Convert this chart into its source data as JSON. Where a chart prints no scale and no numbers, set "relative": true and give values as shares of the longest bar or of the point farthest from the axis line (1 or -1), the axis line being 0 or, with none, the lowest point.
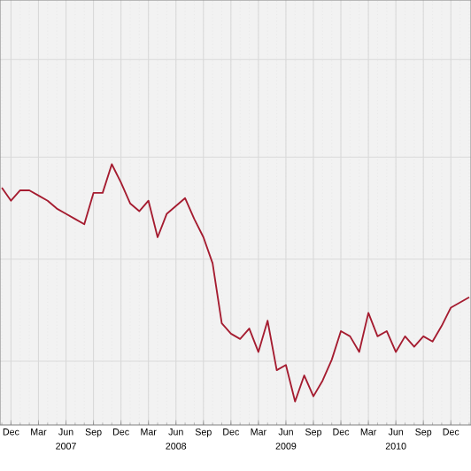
{
  "chart_data": {
    "type": "line",
    "relative": true,
    "grid": true,
    "color": "#a51c30",
    "categories": [
      null,
      "Dec",
      null,
      null,
      "Mar",
      null,
      null,
      "Jun",
      null,
      null,
      "Sep",
      null,
      null,
      "Dec",
      null,
      null,
      "Mar",
      null,
      null,
      "Jun",
      null,
      null,
      "Sep",
      null,
      null,
      "Dec",
      null,
      null,
      "Mar",
      null,
      null,
      "Jun",
      null,
      null,
      "Sep",
      null,
      null,
      "Dec",
      null,
      null,
      "Mar",
      null,
      null,
      "Jun",
      null,
      null,
      "Sep",
      null,
      null,
      "Dec",
      null,
      null
    ],
    "values": [
      0.91,
      0.86,
      0.9,
      0.9,
      0.88,
      0.86,
      0.83,
      0.81,
      0.79,
      0.77,
      0.89,
      0.89,
      1.0,
      0.93,
      0.85,
      0.82,
      0.86,
      0.72,
      0.81,
      0.84,
      0.87,
      0.79,
      0.72,
      0.62,
      0.39,
      0.35,
      0.33,
      0.37,
      0.28,
      0.4,
      0.21,
      0.23,
      0.09,
      0.19,
      0.11,
      0.17,
      0.25,
      0.36,
      0.34,
      0.28,
      0.43,
      0.34,
      0.36,
      0.28,
      0.34,
      0.3,
      0.34,
      0.32,
      0.38,
      0.45,
      0.47,
      0.49
    ],
    "annotations": [
      "2007",
      "2008",
      "2009",
      "2010"
    ]
  }
}
